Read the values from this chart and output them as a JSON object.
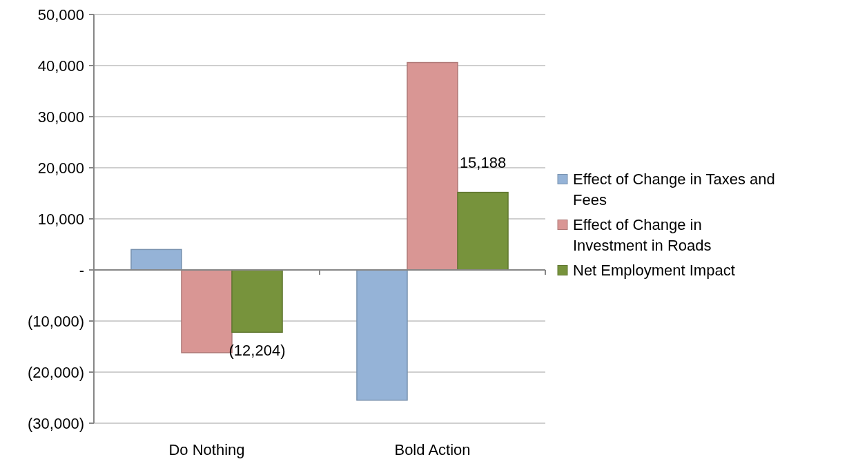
{
  "chart_data": {
    "type": "bar",
    "categories": [
      "Do Nothing",
      "Bold Action"
    ],
    "series": [
      {
        "name": "Effect of Change in Taxes and Fees",
        "color": "#95b3d7",
        "values": [
          4000,
          -25500
        ]
      },
      {
        "name": "Effect of Change in Investment in Roads",
        "color": "#d99694",
        "values": [
          -16200,
          40600
        ]
      },
      {
        "name": "Net Employment Impact",
        "color": "#77933c",
        "values": [
          -12204,
          15188
        ],
        "value_labels": [
          "(12,204)",
          "15,188"
        ]
      }
    ],
    "ylim": [
      -30000,
      50000
    ],
    "yticks": [
      {
        "value": -30000,
        "label": "(30,000)"
      },
      {
        "value": -20000,
        "label": "(20,000)"
      },
      {
        "value": -10000,
        "label": "(10,000)"
      },
      {
        "value": 0,
        "label": "-"
      },
      {
        "value": 10000,
        "label": "10,000"
      },
      {
        "value": 20000,
        "label": "20,000"
      },
      {
        "value": 30000,
        "label": "30,000"
      },
      {
        "value": 40000,
        "label": "40,000"
      },
      {
        "value": 50000,
        "label": "50,000"
      }
    ],
    "grid": "y",
    "legend": "right"
  }
}
